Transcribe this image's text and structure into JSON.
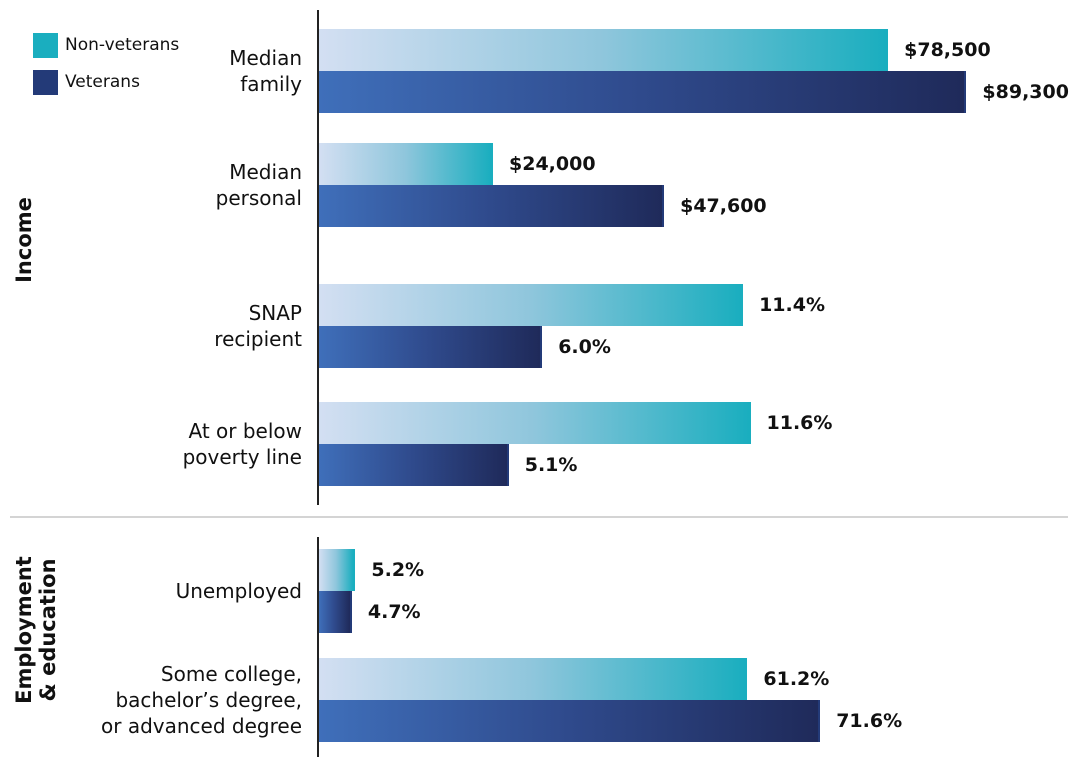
{
  "chart_data": [
    {
      "type": "bar",
      "title": "Income",
      "categories": [
        "Median\nfamily",
        "Median\npersonal",
        "SNAP\nrecipient",
        "At or below\npoverty line"
      ],
      "series": [
        {
          "name": "Non-veterans",
          "color": "#1aaebf",
          "values": [
            78500,
            24000,
            11.4,
            11.6
          ],
          "value_labels": [
            "$78,500",
            "$24,000",
            "11.4%",
            "11.6%"
          ]
        },
        {
          "name": "Veterans",
          "color": "#233a78",
          "values": [
            89300,
            47600,
            6.0,
            5.1
          ],
          "value_labels": [
            "$89,300",
            "$47,600",
            "6.0%",
            "5.1%"
          ]
        }
      ]
    },
    {
      "type": "bar",
      "title": "Employment\n& education",
      "categories": [
        "Unemployed",
        "Some college,\nbachelor’s degree,\nor advanced degree"
      ],
      "series": [
        {
          "color": "#1aaebf",
          "values": [
            5.2,
            61.2
          ],
          "value_labels": [
            "5.2%",
            "61.2%"
          ]
        },
        {
          "color": "#233a78",
          "values": [
            4.7,
            71.6
          ],
          "value_labels": [
            "4.7%",
            "71.6%"
          ]
        }
      ]
    }
  ]
}
